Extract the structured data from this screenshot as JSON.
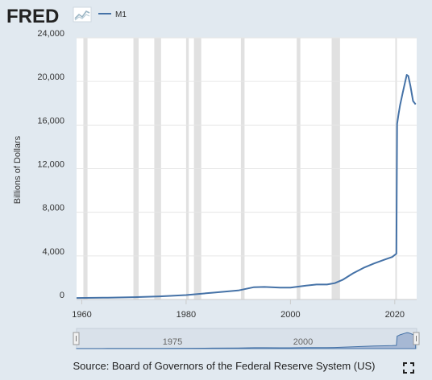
{
  "header": {
    "logo_text": "FRED",
    "legend_label": "M1"
  },
  "colors": {
    "background": "#e1e9f0",
    "plot_background": "#ffffff",
    "series": "#4572a7",
    "recession": "#e1e1e1",
    "navigator_fill": "#a6b8d4"
  },
  "icons": {
    "logo_graph": "trend-graph-icon",
    "fullscreen": "fullscreen-icon",
    "nav_handle_left": "drag-handle-icon",
    "nav_handle_right": "drag-handle-icon"
  },
  "navigator": {
    "labels": [
      "1975",
      "2000"
    ]
  },
  "source_text": "Source: Board of Governors of the Federal Reserve System (US)",
  "chart_data": {
    "type": "line",
    "title": "",
    "xlabel": "",
    "ylabel": "Billions of Dollars",
    "xlim": [
      1959,
      2024.2
    ],
    "ylim": [
      0,
      24000
    ],
    "grid": true,
    "legend_position": "top-left",
    "x_ticks": [
      "1960",
      "1980",
      "2000",
      "2020"
    ],
    "y_ticks": [
      "0",
      "4,000",
      "8,000",
      "12,000",
      "16,000",
      "20,000",
      "24,000"
    ],
    "recessions": [
      [
        1960.3,
        1961.1
      ],
      [
        1969.9,
        1970.9
      ],
      [
        1973.9,
        1975.2
      ],
      [
        1980.0,
        1980.5
      ],
      [
        1981.5,
        1982.9
      ],
      [
        1990.5,
        1991.2
      ],
      [
        2001.2,
        2001.9
      ],
      [
        2007.9,
        2009.5
      ],
      [
        2020.1,
        2020.3
      ]
    ],
    "series": [
      {
        "name": "M1",
        "x": [
          1959,
          1965,
          1970,
          1975,
          1980,
          1985,
          1990,
          1993,
          1995,
          1998,
          2000,
          2003,
          2005,
          2007,
          2008.5,
          2010,
          2012,
          2014,
          2016,
          2018,
          2019.5,
          2020.3,
          2020.45,
          2020.7,
          2021,
          2021.5,
          2022,
          2022.3,
          2022.6,
          2023,
          2023.5,
          2024
        ],
        "values": [
          140,
          168,
          214,
          287,
          408,
          620,
          825,
          1130,
          1150,
          1090,
          1090,
          1280,
          1370,
          1370,
          1500,
          1800,
          2400,
          2900,
          3300,
          3650,
          3900,
          4200,
          16100,
          16900,
          17800,
          18900,
          20000,
          20600,
          20500,
          19600,
          18200,
          17900
        ]
      }
    ]
  }
}
